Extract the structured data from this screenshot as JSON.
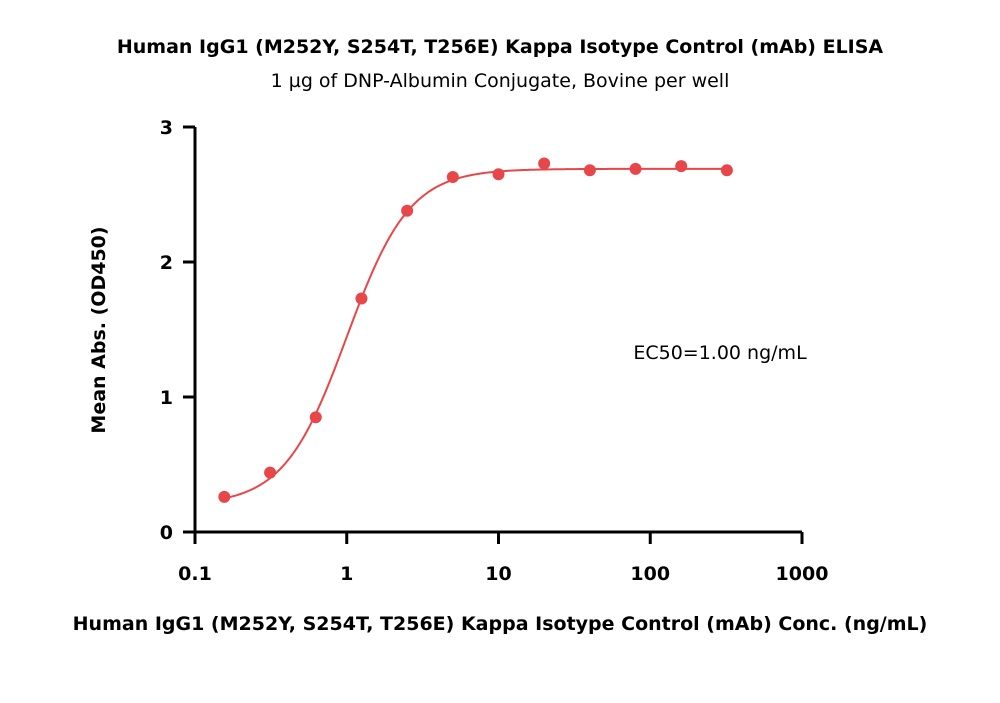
{
  "chart_data": {
    "type": "scatter",
    "title": "Human IgG1 (M252Y, S254T, T256E) Kappa Isotype Control (mAb) ELISA",
    "subtitle": "1 µg of DNP-Albumin Conjugate, Bovine per well",
    "xlabel": "Human IgG1 (M252Y, S254T, T256E) Kappa Isotype Control (mAb) Conc. (ng/mL)",
    "ylabel": "Mean Abs. (OD450)",
    "x_scale": "log",
    "xlim": [
      0.1,
      1000
    ],
    "ylim": [
      0,
      3
    ],
    "x_ticks": [
      0.1,
      1,
      10,
      100,
      1000
    ],
    "x_tick_labels": [
      "0.1",
      "1",
      "10",
      "100",
      "1000"
    ],
    "y_ticks": [
      0,
      1,
      2,
      3
    ],
    "y_tick_labels": [
      "0",
      "1",
      "2",
      "3"
    ],
    "grid": false,
    "annotation": "EC50=1.00 ng/mL",
    "series": [
      {
        "x": [
          0.156,
          0.3125,
          0.625,
          1.25,
          2.5,
          5,
          10,
          20,
          40,
          80,
          160,
          320
        ],
        "y": [
          0.26,
          0.44,
          0.85,
          1.73,
          2.38,
          2.63,
          2.65,
          2.73,
          2.68,
          2.69,
          2.71,
          2.68
        ],
        "color": "#e8474a"
      }
    ],
    "fit": {
      "bottom": 0.2,
      "top": 2.69,
      "ec50": 1.0,
      "hill": 2.1,
      "color": "#e8474a"
    }
  }
}
